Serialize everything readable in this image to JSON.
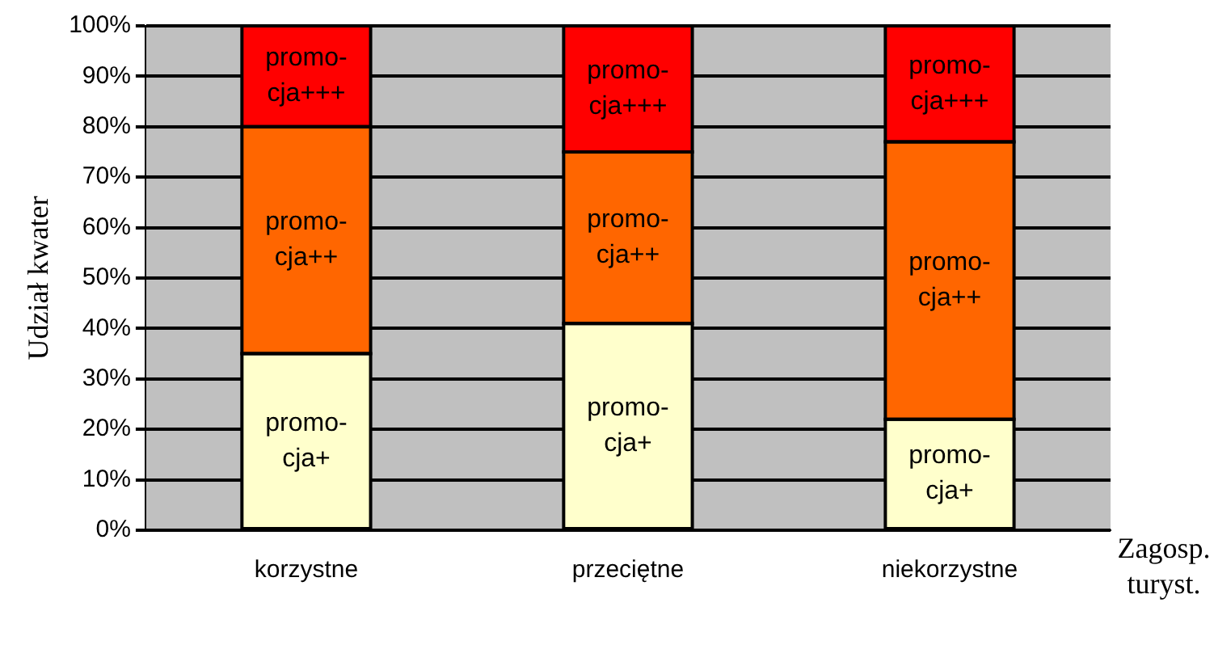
{
  "chart_data": {
    "type": "bar",
    "stacked": true,
    "ylabel": "Udział kwater",
    "xlabel": "Zagosp. turyst.",
    "categories": [
      "korzystne",
      "przeciętne",
      "niekorzystne"
    ],
    "series": [
      {
        "name": "promo-cja+",
        "color": "#ffffcc",
        "values": [
          35,
          41,
          22
        ]
      },
      {
        "name": "promo-cja++",
        "color": "#ff6600",
        "values": [
          45,
          34,
          55
        ]
      },
      {
        "name": "promo-cja+++",
        "color": "#ff0000",
        "values": [
          20,
          25,
          23
        ]
      }
    ],
    "ylim": [
      0,
      100
    ],
    "yticks": [
      {
        "value": 0,
        "label": "0%"
      },
      {
        "value": 10,
        "label": "10%"
      },
      {
        "value": 20,
        "label": "20%"
      },
      {
        "value": 30,
        "label": "30%"
      },
      {
        "value": 40,
        "label": "40%"
      },
      {
        "value": 50,
        "label": "50%"
      },
      {
        "value": 60,
        "label": "60%"
      },
      {
        "value": 70,
        "label": "70%"
      },
      {
        "value": 80,
        "label": "80%"
      },
      {
        "value": 90,
        "label": "90%"
      },
      {
        "value": 100,
        "label": "100%"
      }
    ],
    "grid": "y",
    "legend": false
  }
}
